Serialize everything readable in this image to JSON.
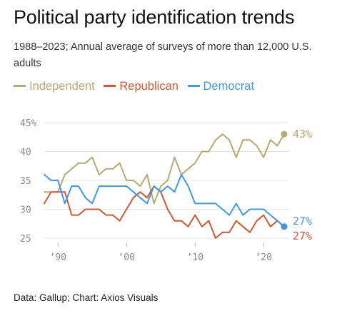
{
  "title": "Political party identification trends",
  "subtitle": "1988–2023; Annual average of surveys of more than 12,000 U.S. adults",
  "source": "Data: Gallup; Chart: Axios Visuals",
  "colors": {
    "independent": "#b5aa72",
    "republican": "#d9552f",
    "democrat": "#3d9ae8",
    "grid": "#e4e4e4",
    "axis_text": "#8a8a8a"
  },
  "chart_data": {
    "type": "line",
    "title": "Political party identification trends",
    "subtitle": "1988–2023; Annual average of surveys of more than 12,000 U.S. adults",
    "xlabel": "",
    "ylabel": "",
    "xlim": [
      1988,
      2023
    ],
    "ylim": [
      25,
      45
    ],
    "y_ticks": [
      25,
      30,
      35,
      40,
      45
    ],
    "y_tick_labels": [
      "25",
      "30",
      "35",
      "40",
      "45%"
    ],
    "x_ticks": [
      1990,
      2000,
      2010,
      2020
    ],
    "x_tick_labels": [
      "’90",
      "’00",
      "’10",
      "’20"
    ],
    "grid": "horizontal",
    "legend_position": "top",
    "x": [
      1988,
      1989,
      1990,
      1991,
      1992,
      1993,
      1994,
      1995,
      1996,
      1997,
      1998,
      1999,
      2000,
      2001,
      2002,
      2003,
      2004,
      2005,
      2006,
      2007,
      2008,
      2009,
      2010,
      2011,
      2012,
      2013,
      2014,
      2015,
      2016,
      2017,
      2018,
      2019,
      2020,
      2021,
      2022,
      2023
    ],
    "series": [
      {
        "name": "Independent",
        "color": "#b5aa72",
        "values": [
          33,
          33,
          33,
          36,
          37,
          38,
          38,
          39,
          36,
          37,
          37,
          38,
          35,
          35,
          34,
          36,
          31,
          34,
          35,
          39,
          36,
          37,
          38,
          40,
          40,
          42,
          43,
          42,
          39,
          42,
          42,
          41,
          39,
          42,
          41,
          43
        ],
        "end_label": "43%"
      },
      {
        "name": "Republican",
        "color": "#d9552f",
        "values": [
          31,
          33,
          33,
          33,
          29,
          29,
          30,
          30,
          30,
          29,
          29,
          28,
          30,
          32,
          33,
          32,
          34,
          33,
          30,
          28,
          28,
          27,
          29,
          27,
          28,
          25,
          26,
          26,
          28,
          27,
          26,
          28,
          29,
          27,
          28,
          27
        ],
        "end_label": "27%"
      },
      {
        "name": "Democrat",
        "color": "#3d9ae8",
        "values": [
          36,
          35,
          35,
          31,
          34,
          34,
          32,
          31,
          34,
          34,
          34,
          34,
          34,
          33,
          32,
          31,
          34,
          33,
          34,
          33,
          36,
          34,
          31,
          31,
          31,
          31,
          30,
          29,
          31,
          29,
          30,
          30,
          30,
          29,
          28,
          27
        ],
        "end_label": "27%"
      }
    ]
  }
}
